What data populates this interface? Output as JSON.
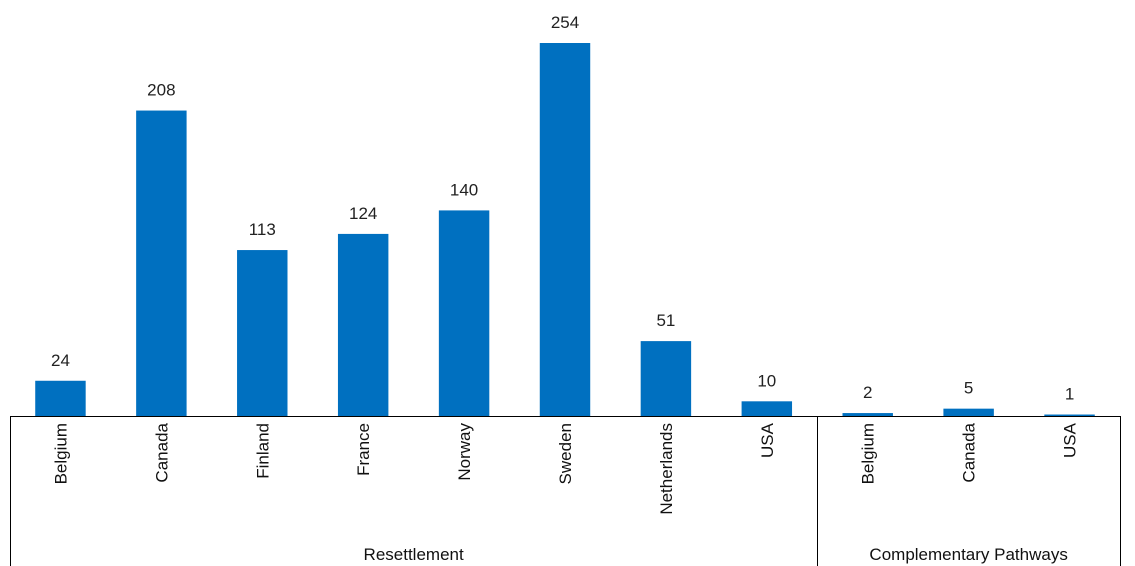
{
  "chart_data": {
    "type": "bar",
    "title": "",
    "xlabel": "",
    "ylabel": "",
    "ylim": [
      0,
      254
    ],
    "grid": false,
    "legend": "none",
    "bar_color": "#0070C0",
    "groups": [
      {
        "label": "Resettlement",
        "categories": [
          "Belgium",
          "Canada",
          "Finland",
          "France",
          "Norway",
          "Sweden",
          "Netherlands",
          "USA"
        ],
        "values": [
          24,
          208,
          113,
          124,
          140,
          254,
          51,
          10
        ]
      },
      {
        "label": "Complementary Pathways",
        "categories": [
          "Belgium",
          "Canada",
          "USA"
        ],
        "values": [
          2,
          5,
          1
        ]
      }
    ]
  }
}
